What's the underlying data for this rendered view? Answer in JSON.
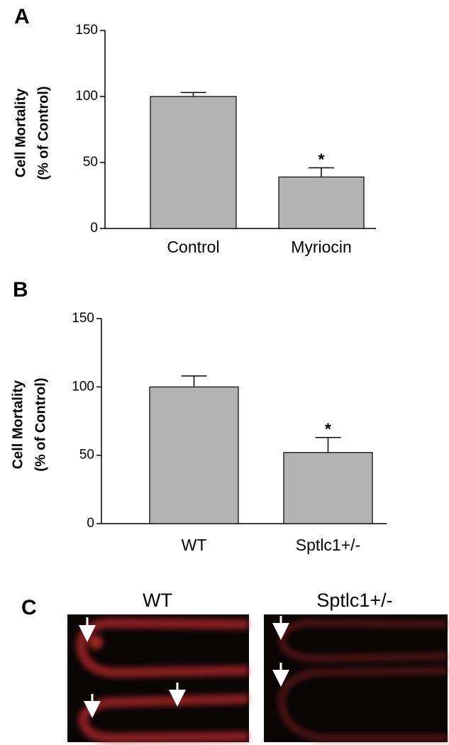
{
  "chart_data": [
    {
      "type": "bar",
      "panel_label": "A",
      "ylabel": [
        "Cell Mortality",
        "(% of Control)"
      ],
      "categories": [
        "Control",
        "Myriocin"
      ],
      "values": [
        100,
        39
      ],
      "errors": [
        3,
        7
      ],
      "annotations": [
        null,
        "*"
      ],
      "color": "#b3b3b3",
      "ylim": [
        0,
        150
      ],
      "yticks": [
        0,
        50,
        100,
        150
      ],
      "grid": false
    },
    {
      "type": "bar",
      "panel_label": "B",
      "ylabel": [
        "Cell Mortality",
        "(% of Control)"
      ],
      "categories": [
        "WT",
        "Sptlc1+/-"
      ],
      "values": [
        100,
        52
      ],
      "errors": [
        8,
        11
      ],
      "annotations": [
        null,
        "*"
      ],
      "color": "#b3b3b3",
      "ylim": [
        0,
        150
      ],
      "yticks": [
        0,
        50,
        100,
        150
      ],
      "grid": false
    }
  ],
  "panel_c": {
    "label": "C",
    "images": [
      "WT",
      "Sptlc1+/-"
    ]
  }
}
